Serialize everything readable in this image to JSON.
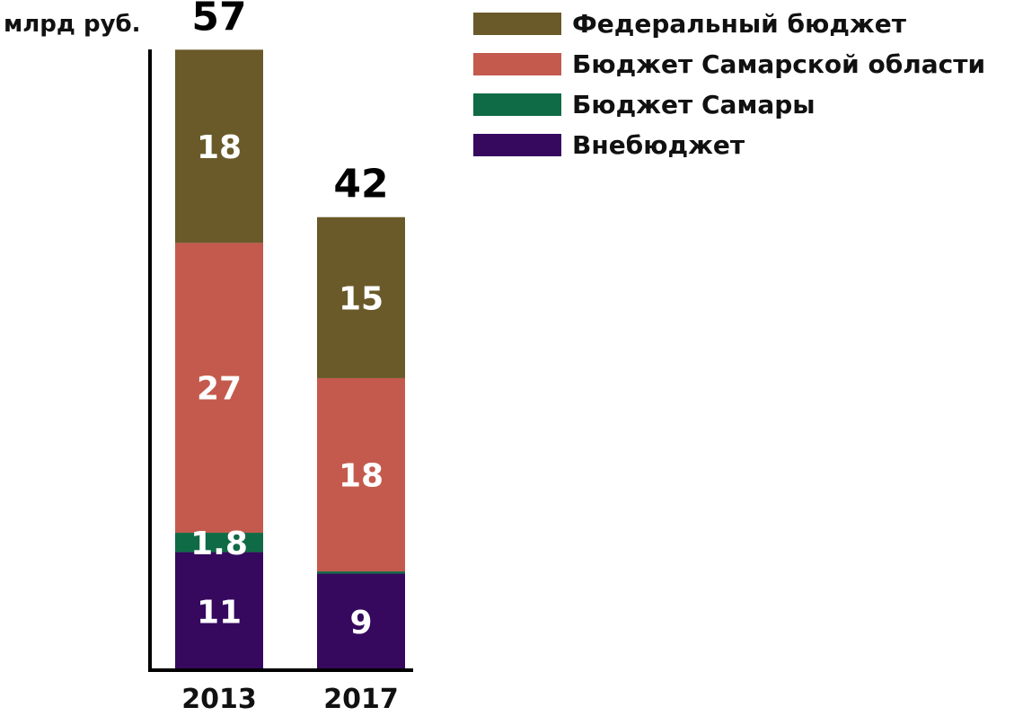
{
  "chart_data": {
    "type": "bar",
    "stacked": true,
    "ylabel": "млрд руб.",
    "categories": [
      "2013",
      "2017"
    ],
    "totals": [
      "57",
      "42"
    ],
    "series": [
      {
        "name": "Внебюджет",
        "color": "#36095f",
        "values": [
          11,
          9
        ],
        "labels": [
          "11",
          "9"
        ]
      },
      {
        "name": "Бюджет Самары",
        "color": "#0e6b45",
        "values": [
          1.8,
          0.2
        ],
        "labels": [
          "1.8",
          ""
        ]
      },
      {
        "name": "Бюджет Самарской области",
        "color": "#c45a4d",
        "values": [
          27,
          18
        ],
        "labels": [
          "27",
          "18"
        ]
      },
      {
        "name": "Федеральный бюджет",
        "color": "#6a5a2a",
        "values": [
          18,
          15
        ],
        "labels": [
          "18",
          "15"
        ]
      }
    ],
    "legend_order": [
      "Федеральный бюджет",
      "Бюджет Самарской области",
      "Бюджет Самары",
      "Внебюджет"
    ],
    "legend_position": "top-right",
    "grid": false
  }
}
